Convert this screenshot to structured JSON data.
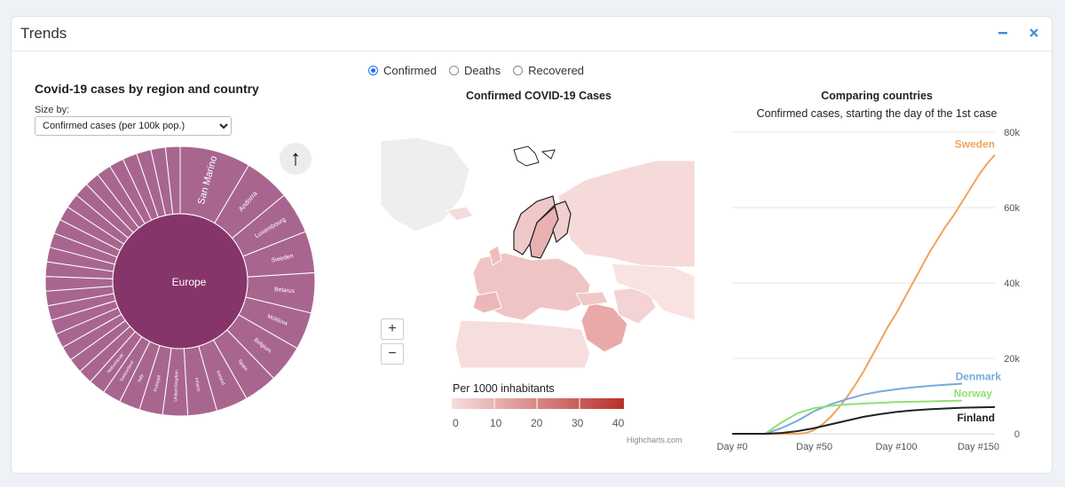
{
  "panel": {
    "title": "Trends",
    "minimize_label": "minimize",
    "close_label": "close"
  },
  "sunburst": {
    "title": "Covid-19 cases by region and country",
    "size_by_label": "Size by:",
    "size_by_selected": "Confirmed cases (per 100k pop.)",
    "center_label": "Europe",
    "segments": [
      "San Marino",
      "Andorra",
      "Luxembourg",
      "Sweden",
      "Belarus",
      "Moldova",
      "Belgium",
      "Spain",
      "Iceland",
      "Ireland",
      "United Kingdom",
      "Portugal",
      "Italy",
      "Switzerland",
      "Netherlands"
    ],
    "color": "#a8668f",
    "center_color": "#86356a"
  },
  "radio": {
    "options": [
      "Confirmed",
      "Deaths",
      "Recovered"
    ],
    "selected": "Confirmed"
  },
  "map": {
    "title": "Confirmed COVID-19 Cases",
    "legend_title": "Per 1000 inhabitants",
    "legend_ticks": [
      "0",
      "10",
      "20",
      "30",
      "40"
    ],
    "credit": "Highcharts.com",
    "zoom_in": "+",
    "zoom_out": "−"
  },
  "chart_data": {
    "type": "line",
    "title": "Comparing countries",
    "subtitle": "Confirmed cases, starting the day of the 1st case",
    "xlabel": "",
    "ylabel": "",
    "x_ticks": [
      "Day #0",
      "Day #50",
      "Day #100",
      "Day #150"
    ],
    "y_ticks": [
      "0",
      "20k",
      "40k",
      "60k",
      "80k"
    ],
    "xlim": [
      0,
      160
    ],
    "ylim": [
      0,
      80000
    ],
    "series": [
      {
        "name": "Sweden",
        "color": "#f0a35a",
        "x": [
          0,
          20,
          40,
          45,
          50,
          55,
          60,
          65,
          70,
          75,
          80,
          85,
          90,
          95,
          100,
          105,
          110,
          115,
          120,
          125,
          130,
          135,
          140,
          145,
          150,
          155,
          160
        ],
        "values": [
          0,
          0,
          0,
          200,
          1000,
          2500,
          4500,
          7000,
          9800,
          13000,
          16500,
          20500,
          24500,
          28500,
          32000,
          36000,
          40000,
          44000,
          48000,
          51500,
          55000,
          58000,
          61500,
          65000,
          68500,
          71500,
          74000
        ]
      },
      {
        "name": "Denmark",
        "color": "#79a9de",
        "x": [
          0,
          20,
          30,
          40,
          50,
          60,
          70,
          80,
          90,
          100,
          110,
          120,
          130,
          140
        ],
        "values": [
          0,
          0,
          1500,
          3500,
          6000,
          7800,
          9200,
          10400,
          11200,
          11800,
          12300,
          12700,
          13000,
          13300
        ]
      },
      {
        "name": "Norway",
        "color": "#90e073",
        "x": [
          0,
          20,
          30,
          40,
          50,
          60,
          70,
          80,
          90,
          100,
          110,
          120,
          130,
          140
        ],
        "values": [
          0,
          0,
          3000,
          5500,
          6800,
          7400,
          7800,
          8000,
          8200,
          8400,
          8500,
          8600,
          8700,
          8800
        ]
      },
      {
        "name": "Finland",
        "color": "#222222",
        "x": [
          0,
          20,
          30,
          40,
          50,
          60,
          70,
          80,
          90,
          100,
          110,
          120,
          130,
          140,
          150,
          160
        ],
        "values": [
          0,
          0,
          200,
          700,
          1500,
          2500,
          3500,
          4500,
          5200,
          5800,
          6200,
          6500,
          6700,
          6900,
          7000,
          7100
        ]
      }
    ]
  }
}
